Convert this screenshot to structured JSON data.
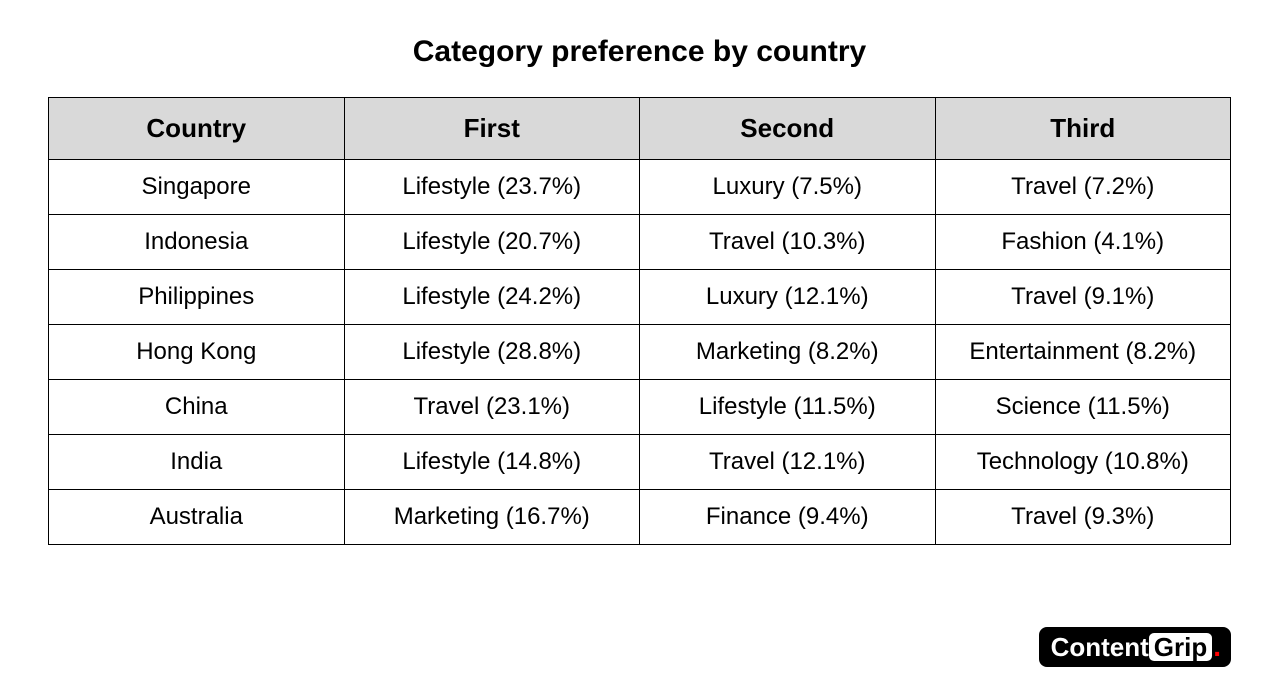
{
  "title": "Category preference by country",
  "table": {
    "type": "table",
    "columns": [
      "Country",
      "First",
      "Second",
      "Third"
    ],
    "rows": [
      [
        "Singapore",
        "Lifestyle (23.7%)",
        "Luxury (7.5%)",
        "Travel (7.2%)"
      ],
      [
        "Indonesia",
        "Lifestyle (20.7%)",
        "Travel (10.3%)",
        "Fashion (4.1%)"
      ],
      [
        "Philippines",
        "Lifestyle (24.2%)",
        "Luxury (12.1%)",
        "Travel (9.1%)"
      ],
      [
        "Hong Kong",
        "Lifestyle (28.8%)",
        "Marketing (8.2%)",
        "Entertainment (8.2%)"
      ],
      [
        "China",
        "Travel (23.1%)",
        "Lifestyle (11.5%)",
        "Science (11.5%)"
      ],
      [
        "India",
        "Lifestyle (14.8%)",
        "Travel (12.1%)",
        "Technology (10.8%)"
      ],
      [
        "Australia",
        "Marketing (16.7%)",
        "Finance (9.4%)",
        "Travel (9.3%)"
      ]
    ],
    "header_background": "#d9d9d9",
    "border_color": "#000000",
    "header_fontsize": 26,
    "cell_fontsize": 24,
    "text_color": "#000000",
    "background_color": "#ffffff"
  },
  "logo": {
    "content_text": "Content",
    "grip_text": "Grip",
    "dot": ".",
    "background_color": "#000000",
    "content_color": "#ffffff",
    "grip_background": "#ffffff",
    "grip_color": "#000000",
    "dot_color": "#ff0000"
  }
}
